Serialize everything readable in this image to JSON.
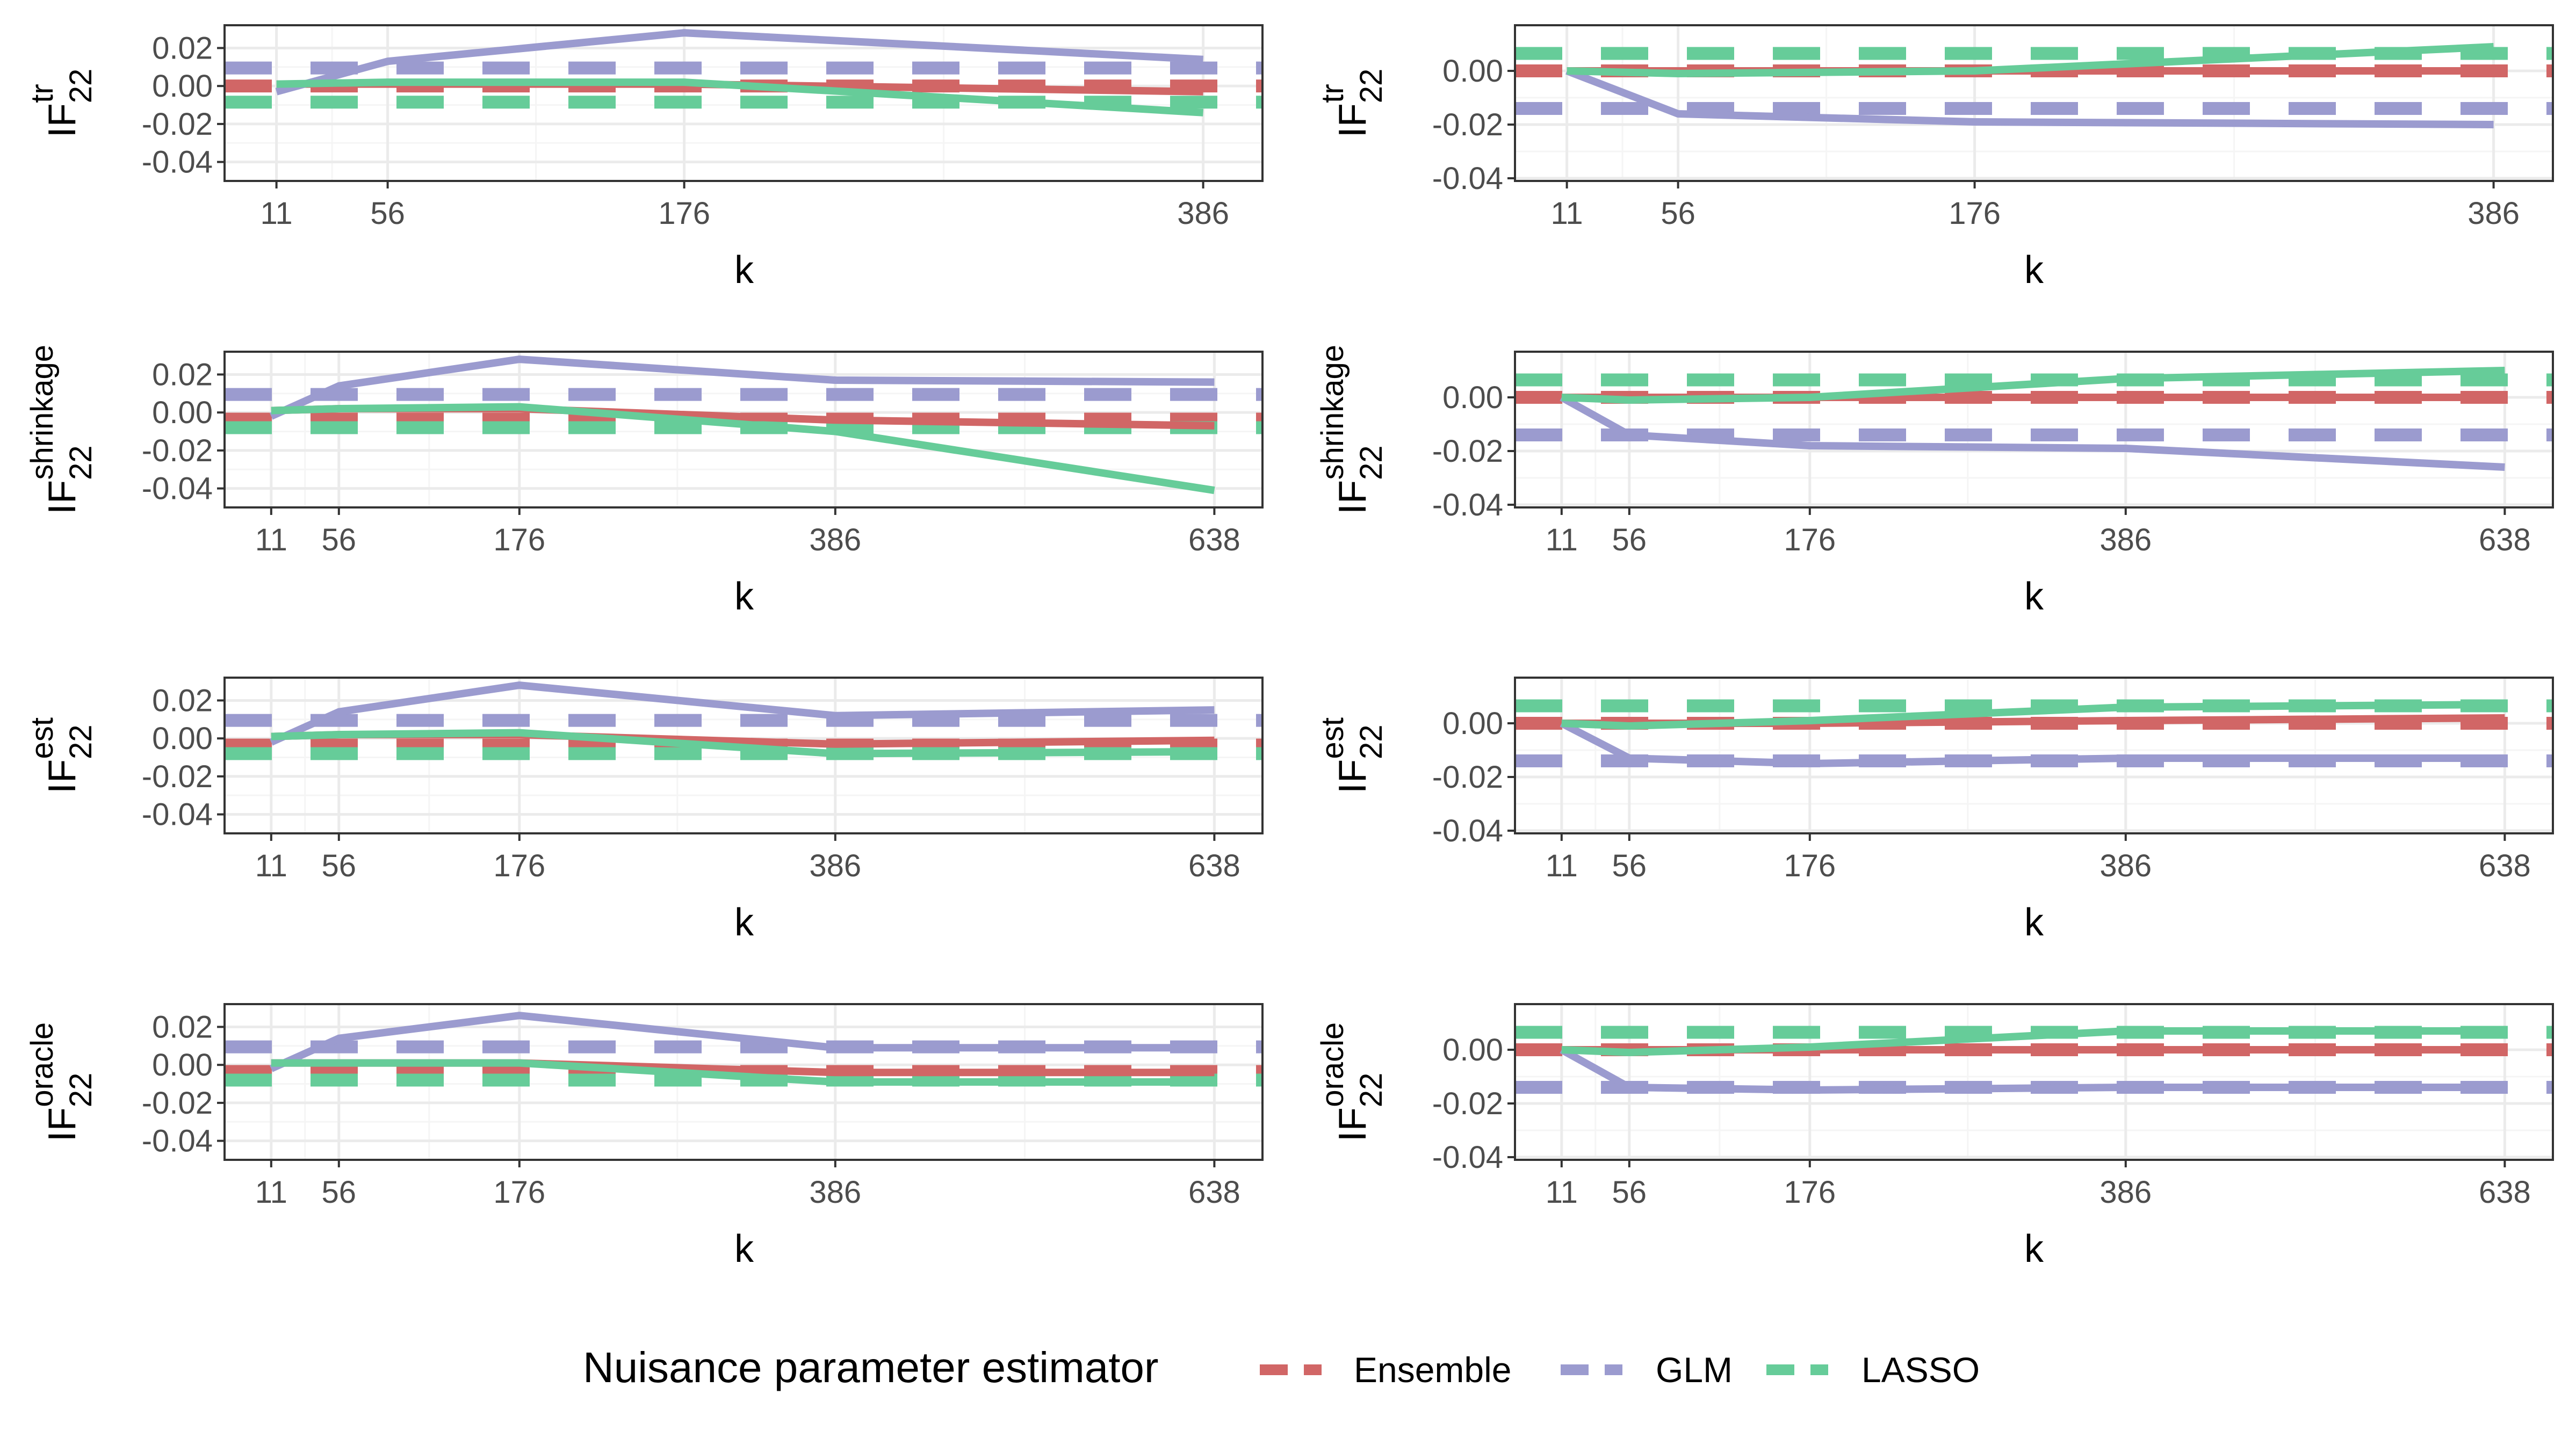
{
  "chart_data": [
    {
      "type": "line",
      "ylabel_base": "IF",
      "ylabel_sub": "22",
      "ylabel_sup": "tr",
      "xlabel": "k",
      "x_ticks": [
        11,
        56,
        176,
        386
      ],
      "xlim": [
        -10,
        410
      ],
      "y_ticks": [
        0.02,
        0.0,
        -0.02,
        -0.04
      ],
      "y_tick_labels": [
        "0.02",
        "0.00",
        "-0.02",
        "-0.04"
      ],
      "ylim": [
        -0.05,
        0.032
      ],
      "grid": true,
      "series": [
        {
          "name": "Ensemble",
          "x": [
            11,
            56,
            176,
            386
          ],
          "y": [
            0.001,
            0.001,
            0.001,
            -0.003
          ],
          "dashed_ref": 0.0
        },
        {
          "name": "GLM",
          "x": [
            11,
            56,
            176,
            386
          ],
          "y": [
            -0.003,
            0.013,
            0.028,
            0.014
          ],
          "dashed_ref": 0.0095
        },
        {
          "name": "LASSO",
          "x": [
            11,
            56,
            176,
            386
          ],
          "y": [
            0.001,
            0.002,
            0.002,
            -0.014
          ],
          "dashed_ref": -0.0085
        }
      ]
    },
    {
      "type": "line",
      "ylabel_base": "IF",
      "ylabel_sub": "22",
      "ylabel_sup": "tr",
      "xlabel": "k",
      "x_ticks": [
        11,
        56,
        176,
        386
      ],
      "xlim": [
        -10,
        410
      ],
      "y_ticks": [
        0.0,
        -0.02,
        -0.04
      ],
      "y_tick_labels": [
        "0.00",
        "-0.02",
        "-0.04"
      ],
      "ylim": [
        -0.041,
        0.017
      ],
      "grid": true,
      "series": [
        {
          "name": "Ensemble",
          "x": [
            11,
            56,
            176,
            386
          ],
          "y": [
            0.0,
            0.0,
            0.0,
            0.0
          ],
          "dashed_ref": 0.0
        },
        {
          "name": "GLM",
          "x": [
            11,
            56,
            176,
            386
          ],
          "y": [
            0.0,
            -0.016,
            -0.019,
            -0.02
          ],
          "dashed_ref": -0.014
        },
        {
          "name": "LASSO",
          "x": [
            11,
            56,
            176,
            386
          ],
          "y": [
            0.0,
            -0.001,
            0.0,
            0.009
          ],
          "dashed_ref": 0.0065
        }
      ]
    },
    {
      "type": "line",
      "ylabel_base": "IF",
      "ylabel_sub": "22",
      "ylabel_sup": "shrinkage",
      "xlabel": "k",
      "x_ticks": [
        11,
        56,
        176,
        386,
        638
      ],
      "xlim": [
        -20,
        670
      ],
      "y_ticks": [
        0.02,
        0.0,
        -0.02,
        -0.04
      ],
      "y_tick_labels": [
        "0.02",
        "0.00",
        "-0.02",
        "-0.04"
      ],
      "ylim": [
        -0.05,
        0.032
      ],
      "grid": true,
      "series": [
        {
          "name": "Ensemble",
          "x": [
            11,
            56,
            176,
            386,
            638
          ],
          "y": [
            0.001,
            0.002,
            0.002,
            -0.004,
            -0.007
          ],
          "dashed_ref": -0.0035
        },
        {
          "name": "GLM",
          "x": [
            11,
            56,
            176,
            386,
            638
          ],
          "y": [
            -0.002,
            0.014,
            0.028,
            0.017,
            0.016
          ],
          "dashed_ref": 0.0095
        },
        {
          "name": "LASSO",
          "x": [
            11,
            56,
            176,
            386,
            638
          ],
          "y": [
            0.001,
            0.002,
            0.003,
            -0.01,
            -0.041
          ],
          "dashed_ref": -0.008
        }
      ]
    },
    {
      "type": "line",
      "ylabel_base": "IF",
      "ylabel_sub": "22",
      "ylabel_sup": "shrinkage",
      "xlabel": "k",
      "x_ticks": [
        11,
        56,
        176,
        386,
        638
      ],
      "xlim": [
        -20,
        670
      ],
      "y_ticks": [
        0.0,
        -0.02,
        -0.04
      ],
      "y_tick_labels": [
        "0.00",
        "-0.02",
        "-0.04"
      ],
      "ylim": [
        -0.041,
        0.017
      ],
      "grid": true,
      "series": [
        {
          "name": "Ensemble",
          "x": [
            11,
            56,
            176,
            386,
            638
          ],
          "y": [
            0.0,
            0.0,
            0.0,
            0.0,
            0.0
          ],
          "dashed_ref": 0.0
        },
        {
          "name": "GLM",
          "x": [
            11,
            56,
            176,
            386,
            638
          ],
          "y": [
            0.0,
            -0.014,
            -0.018,
            -0.019,
            -0.026
          ],
          "dashed_ref": -0.014
        },
        {
          "name": "LASSO",
          "x": [
            11,
            56,
            176,
            386,
            638
          ],
          "y": [
            0.0,
            -0.001,
            0.0,
            0.007,
            0.01
          ],
          "dashed_ref": 0.0065
        }
      ]
    },
    {
      "type": "line",
      "ylabel_base": "IF",
      "ylabel_sub": "22",
      "ylabel_sup": "est",
      "xlabel": "k",
      "x_ticks": [
        11,
        56,
        176,
        386,
        638
      ],
      "xlim": [
        -20,
        670
      ],
      "y_ticks": [
        0.02,
        0.0,
        -0.02,
        -0.04
      ],
      "y_tick_labels": [
        "0.02",
        "0.00",
        "-0.02",
        "-0.04"
      ],
      "ylim": [
        -0.05,
        0.032
      ],
      "grid": true,
      "series": [
        {
          "name": "Ensemble",
          "x": [
            11,
            56,
            176,
            386,
            638
          ],
          "y": [
            0.001,
            0.002,
            0.002,
            -0.003,
            -0.001
          ],
          "dashed_ref": -0.0035
        },
        {
          "name": "GLM",
          "x": [
            11,
            56,
            176,
            386,
            638
          ],
          "y": [
            -0.002,
            0.014,
            0.028,
            0.012,
            0.015
          ],
          "dashed_ref": 0.0095
        },
        {
          "name": "LASSO",
          "x": [
            11,
            56,
            176,
            386,
            638
          ],
          "y": [
            0.001,
            0.002,
            0.003,
            -0.008,
            -0.007
          ],
          "dashed_ref": -0.008
        }
      ]
    },
    {
      "type": "line",
      "ylabel_base": "IF",
      "ylabel_sub": "22",
      "ylabel_sup": "est",
      "xlabel": "k",
      "x_ticks": [
        11,
        56,
        176,
        386,
        638
      ],
      "xlim": [
        -20,
        670
      ],
      "y_ticks": [
        0.0,
        -0.02,
        -0.04
      ],
      "y_tick_labels": [
        "0.00",
        "-0.02",
        "-0.04"
      ],
      "ylim": [
        -0.041,
        0.017
      ],
      "grid": true,
      "series": [
        {
          "name": "Ensemble",
          "x": [
            11,
            56,
            176,
            386,
            638
          ],
          "y": [
            0.0,
            0.0,
            0.0,
            0.001,
            0.002
          ],
          "dashed_ref": 0.0
        },
        {
          "name": "GLM",
          "x": [
            11,
            56,
            176,
            386,
            638
          ],
          "y": [
            0.0,
            -0.013,
            -0.015,
            -0.013,
            -0.013
          ],
          "dashed_ref": -0.014
        },
        {
          "name": "LASSO",
          "x": [
            11,
            56,
            176,
            386,
            638
          ],
          "y": [
            0.0,
            -0.001,
            0.001,
            0.006,
            0.007
          ],
          "dashed_ref": 0.0065
        }
      ]
    },
    {
      "type": "line",
      "ylabel_base": "IF",
      "ylabel_sub": "22",
      "ylabel_sup": "oracle",
      "xlabel": "k",
      "x_ticks": [
        11,
        56,
        176,
        386,
        638
      ],
      "xlim": [
        -20,
        670
      ],
      "y_ticks": [
        0.02,
        0.0,
        -0.02,
        -0.04
      ],
      "y_tick_labels": [
        "0.02",
        "0.00",
        "-0.02",
        "-0.04"
      ],
      "ylim": [
        -0.05,
        0.032
      ],
      "grid": true,
      "series": [
        {
          "name": "Ensemble",
          "x": [
            11,
            56,
            176,
            386,
            638
          ],
          "y": [
            0.001,
            0.001,
            0.001,
            -0.004,
            -0.004
          ],
          "dashed_ref": -0.0035
        },
        {
          "name": "GLM",
          "x": [
            11,
            56,
            176,
            386,
            638
          ],
          "y": [
            -0.002,
            0.014,
            0.026,
            0.009,
            0.009
          ],
          "dashed_ref": 0.0095
        },
        {
          "name": "LASSO",
          "x": [
            11,
            56,
            176,
            386,
            638
          ],
          "y": [
            0.001,
            0.001,
            0.001,
            -0.009,
            -0.009
          ],
          "dashed_ref": -0.008
        }
      ]
    },
    {
      "type": "line",
      "ylabel_base": "IF",
      "ylabel_sub": "22",
      "ylabel_sup": "oracle",
      "xlabel": "k",
      "x_ticks": [
        11,
        56,
        176,
        386,
        638
      ],
      "xlim": [
        -20,
        670
      ],
      "y_ticks": [
        0.0,
        -0.02,
        -0.04
      ],
      "y_tick_labels": [
        "0.00",
        "-0.02",
        "-0.04"
      ],
      "ylim": [
        -0.041,
        0.017
      ],
      "grid": true,
      "series": [
        {
          "name": "Ensemble",
          "x": [
            11,
            56,
            176,
            386,
            638
          ],
          "y": [
            0.0,
            0.0,
            0.0,
            0.0,
            0.0
          ],
          "dashed_ref": 0.0
        },
        {
          "name": "GLM",
          "x": [
            11,
            56,
            176,
            386,
            638
          ],
          "y": [
            0.0,
            -0.014,
            -0.015,
            -0.014,
            -0.014
          ],
          "dashed_ref": -0.014
        },
        {
          "name": "LASSO",
          "x": [
            11,
            56,
            176,
            386,
            638
          ],
          "y": [
            0.0,
            -0.001,
            0.001,
            0.007,
            0.007
          ],
          "dashed_ref": 0.0065
        }
      ]
    }
  ],
  "legend": {
    "title": "Nuisance parameter estimator",
    "placement": "bottom",
    "items": [
      {
        "label": "Ensemble",
        "color": "#d16666"
      },
      {
        "label": "GLM",
        "color": "#9b9bcf"
      },
      {
        "label": "LASSO",
        "color": "#66cc99"
      }
    ]
  },
  "style": {
    "panel_border": "#333333",
    "grid_major": "#ebebeb",
    "grid_minor": "#f5f5f5",
    "series_colors": {
      "Ensemble": "#d16666",
      "GLM": "#9b9bcf",
      "LASSO": "#66cc99"
    }
  }
}
